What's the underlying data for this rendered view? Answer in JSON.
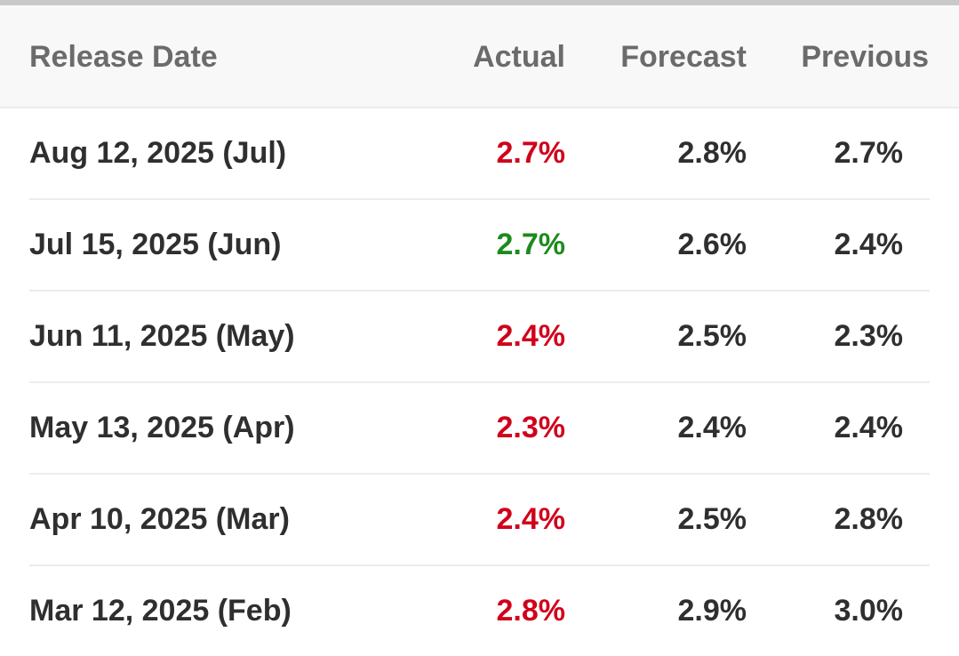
{
  "colors": {
    "worse": "#d0021b",
    "better": "#1e8a1e",
    "text": "#2f2f2f",
    "header_text": "#6b6b6b"
  },
  "table": {
    "headers": {
      "date": "Release Date",
      "actual": "Actual",
      "forecast": "Forecast",
      "previous": "Previous"
    },
    "rows": [
      {
        "date": "Aug 12, 2025 (Jul)",
        "actual": "2.7%",
        "actual_status": "worse",
        "forecast": "2.8%",
        "previous": "2.7%"
      },
      {
        "date": "Jul 15, 2025 (Jun)",
        "actual": "2.7%",
        "actual_status": "better",
        "forecast": "2.6%",
        "previous": "2.4%"
      },
      {
        "date": "Jun 11, 2025 (May)",
        "actual": "2.4%",
        "actual_status": "worse",
        "forecast": "2.5%",
        "previous": "2.3%"
      },
      {
        "date": "May 13, 2025 (Apr)",
        "actual": "2.3%",
        "actual_status": "worse",
        "forecast": "2.4%",
        "previous": "2.4%"
      },
      {
        "date": "Apr 10, 2025 (Mar)",
        "actual": "2.4%",
        "actual_status": "worse",
        "forecast": "2.5%",
        "previous": "2.8%"
      },
      {
        "date": "Mar 12, 2025 (Feb)",
        "actual": "2.8%",
        "actual_status": "worse",
        "forecast": "2.9%",
        "previous": "3.0%"
      }
    ]
  }
}
